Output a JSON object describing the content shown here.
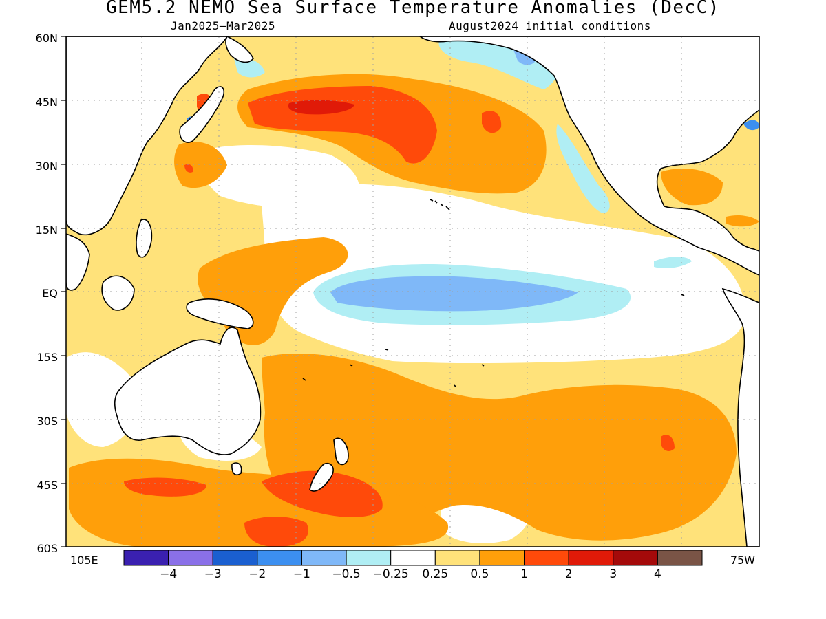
{
  "title": "GEM5.2_NEMO Sea Surface Temperature Anomalies (DecC)",
  "subtitle_left": "Jan2025–Mar2025",
  "subtitle_right": "August2024 initial conditions",
  "lat_labels": [
    "60N",
    "45N",
    "30N",
    "15N",
    "EQ",
    "15S",
    "30S",
    "45S",
    "60S"
  ],
  "lon_left": "105E",
  "lon_right": "75W",
  "colorbar": {
    "colors": [
      "#3a20b0",
      "#8a70e8",
      "#1a5fd0",
      "#3c8ff0",
      "#7fb8f8",
      "#b0eef4",
      "#ffffff",
      "#ffe27a",
      "#ff9f0a",
      "#ff4a0a",
      "#e01a08",
      "#a40a0a",
      "#7a5446"
    ],
    "labels": [
      "−4",
      "−3",
      "−2",
      "−1",
      "−0.5",
      "−0.25",
      "0.25",
      "0.5",
      "1",
      "2",
      "3",
      "4"
    ]
  },
  "map": {
    "lat_range": [
      -60,
      60
    ],
    "lon_range": [
      105,
      285
    ],
    "background_color": "#ffe27a",
    "coast_color": "#000000"
  }
}
